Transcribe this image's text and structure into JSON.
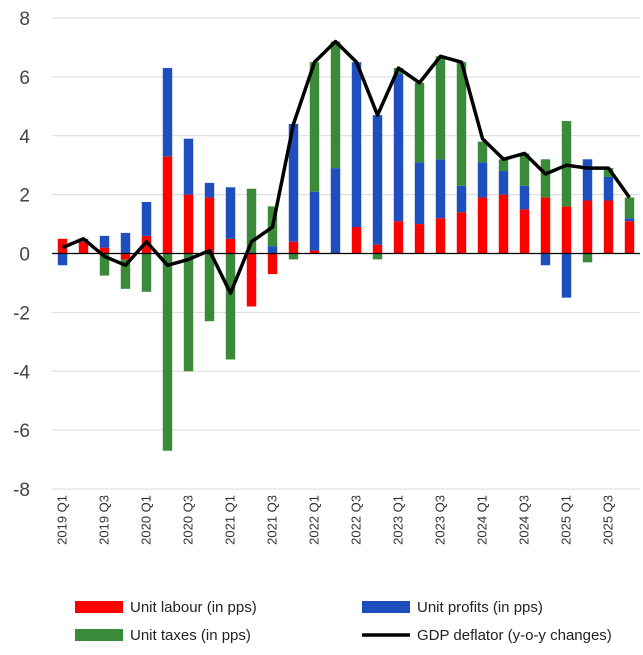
{
  "chart_data": {
    "type": "bar",
    "stacked": true,
    "grid": true,
    "legend": "bottom",
    "categories": [
      "2019 Q1",
      null,
      "2019 Q3",
      null,
      "2020 Q1",
      null,
      "2020 Q3",
      null,
      "2021 Q1",
      null,
      "2021 Q3",
      null,
      "2022 Q1",
      null,
      "2022 Q3",
      null,
      "2023 Q1",
      null,
      "2023 Q3",
      null,
      "2024 Q1",
      null,
      "2024 Q3",
      null,
      "2025 Q1",
      null,
      "2025 Q3",
      null
    ],
    "ylim": [
      -8,
      8
    ],
    "yticks": [
      -8,
      -6,
      -4,
      -2,
      0,
      2,
      4,
      6,
      8
    ],
    "series": [
      {
        "name": "Unit labour (in pps)",
        "color": "#ff0000",
        "type": "bar",
        "values": [
          0.5,
          0.4,
          0.2,
          -0.2,
          0.6,
          3.3,
          2.0,
          1.9,
          0.5,
          -1.8,
          -0.7,
          0.4,
          0.1,
          0.0,
          0.9,
          0.3,
          1.1,
          1.0,
          1.2,
          1.4,
          1.9,
          2.0,
          1.5,
          1.9,
          1.6,
          1.8,
          1.8,
          1.1
        ]
      },
      {
        "name": "Unit profits (in pps)",
        "color": "#1f4fbf",
        "type": "bar",
        "values": [
          -0.4,
          0.1,
          0.4,
          0.7,
          1.15,
          3.0,
          1.9,
          0.5,
          1.75,
          0.0,
          0.25,
          4.0,
          2.0,
          2.9,
          5.6,
          4.4,
          5.0,
          2.1,
          2.0,
          0.9,
          1.2,
          0.8,
          0.8,
          -0.4,
          -1.5,
          1.4,
          0.8,
          0.1
        ]
      },
      {
        "name": "Unit taxes (in pps)",
        "color": "#3a8a3a",
        "type": "bar",
        "values": [
          0.0,
          0.0,
          -0.75,
          -1.0,
          -1.3,
          -6.7,
          -4.0,
          -2.3,
          -3.6,
          2.2,
          1.35,
          -0.2,
          4.4,
          4.3,
          0.0,
          -0.2,
          0.2,
          2.7,
          3.5,
          4.2,
          0.7,
          0.4,
          1.1,
          1.3,
          2.9,
          -0.3,
          0.3,
          0.7
        ]
      },
      {
        "name": "GDP deflator (y-o-y changes)",
        "color": "#000000",
        "type": "line",
        "values": [
          0.2,
          0.5,
          -0.1,
          -0.4,
          0.4,
          -0.4,
          -0.2,
          0.1,
          -1.35,
          0.4,
          0.9,
          4.4,
          6.5,
          7.2,
          6.5,
          4.7,
          6.3,
          5.8,
          6.7,
          6.5,
          3.9,
          3.2,
          3.4,
          2.7,
          3.0,
          2.9,
          2.9,
          1.9
        ]
      }
    ]
  }
}
